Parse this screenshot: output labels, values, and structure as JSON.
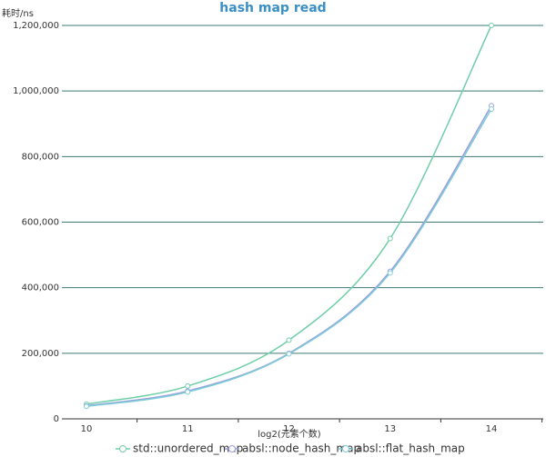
{
  "chart_data": {
    "type": "line",
    "title": "hash map read",
    "y_label": "耗时/ns",
    "x_label": "log2(元素个数)",
    "categories": [
      "10",
      "11",
      "12",
      "13",
      "14"
    ],
    "series": [
      {
        "name": "std::unordered_map",
        "color": "#6fcfa8",
        "values": [
          45000,
          100000,
          240000,
          550000,
          1200000
        ]
      },
      {
        "name": "absl::node_hash_map",
        "color": "#9a9ee0",
        "values": [
          40000,
          85000,
          200000,
          450000,
          955000
        ]
      },
      {
        "name": "absl::flat_hash_map",
        "color": "#7ecbd6",
        "values": [
          38000,
          82000,
          198000,
          445000,
          945000
        ]
      }
    ],
    "ylim": [
      0,
      1200000
    ],
    "yticks": [
      0,
      {
        "value": 200000,
        "label": "200,000"
      },
      {
        "value": 400000,
        "label": "400,000"
      },
      {
        "value": 600000,
        "label": "600,000"
      },
      {
        "value": 800000,
        "label": "800,000"
      },
      {
        "value": 1000000,
        "label": "1,000,000"
      },
      {
        "value": 1200000,
        "label": "1,200,000"
      }
    ],
    "grid": true
  }
}
